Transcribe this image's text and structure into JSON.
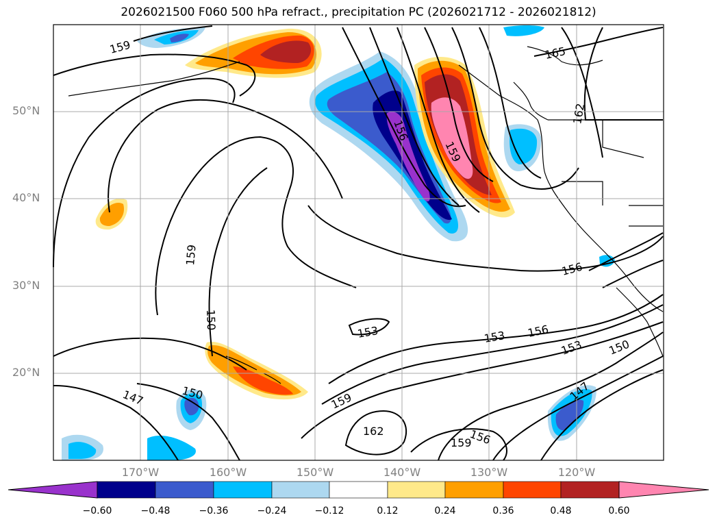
{
  "title": "2026021500 F060 500 hPa refract., precipitation PC (2026021712 - 2026021812)",
  "lat_labels": [
    "50°N",
    "40°N",
    "30°N",
    "20°N"
  ],
  "lon_labels": [
    "170°W",
    "160°W",
    "150°W",
    "140°W",
    "130°W",
    "120°W"
  ],
  "contour_labels": [
    "159",
    "165",
    "162",
    "156",
    "159",
    "159",
    "150",
    "156",
    "153",
    "153",
    "156",
    "153",
    "150",
    "150",
    "147",
    "159",
    "162",
    "159",
    "156",
    "147"
  ],
  "colorbar": {
    "ticks": [
      "−0.60",
      "−0.48",
      "−0.36",
      "−0.24",
      "−0.12",
      "0.12",
      "0.24",
      "0.36",
      "0.48",
      "0.60"
    ],
    "colors": [
      "#9932cc",
      "#00008b",
      "#3b5bcd",
      "#00bfff",
      "#add8f0",
      "#ffffff",
      "#ffe98a",
      "#ff9f00",
      "#ff4500",
      "#b22222",
      "#ff85b0"
    ]
  }
}
